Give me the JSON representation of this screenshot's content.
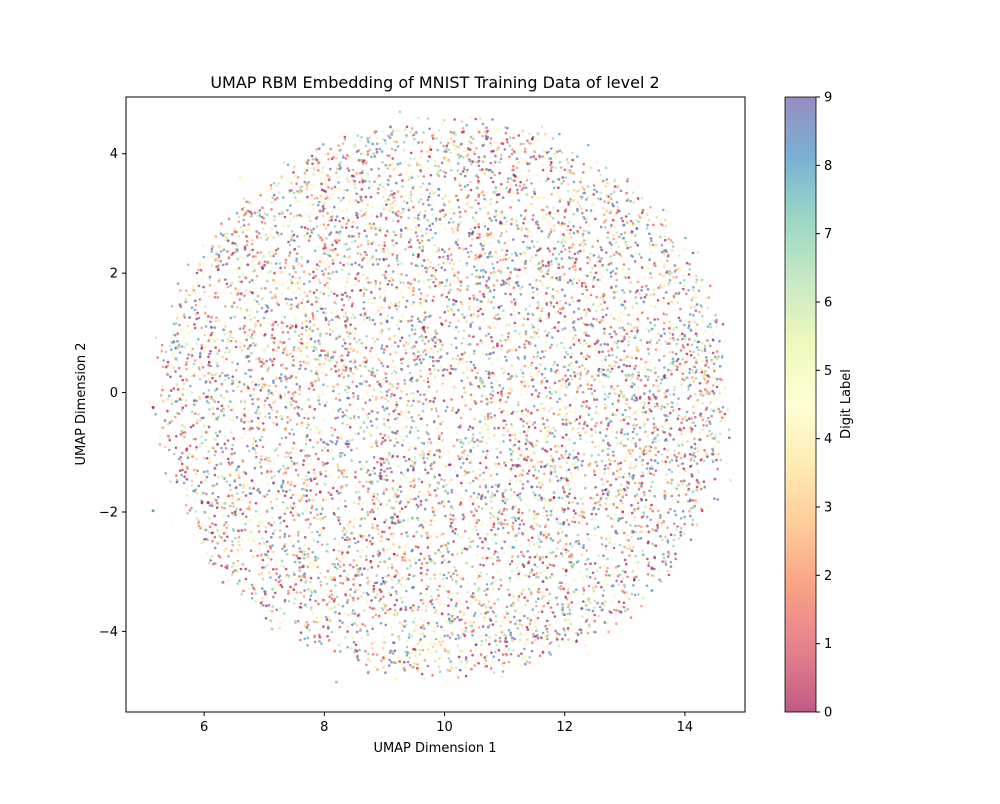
{
  "chart_data": {
    "type": "scatter",
    "title": "UMAP RBM Embedding of MNIST Training Data of level 2",
    "xlabel": "UMAP Dimension 1",
    "ylabel": "UMAP Dimension 2",
    "xlim": [
      4.7,
      15.0
    ],
    "ylim": [
      -5.35,
      4.95
    ],
    "xticks": [
      6,
      8,
      10,
      12,
      14
    ],
    "xtick_labels": [
      "6",
      "8",
      "10",
      "12",
      "14"
    ],
    "yticks": [
      -4,
      -2,
      0,
      2,
      4
    ],
    "ytick_labels": [
      "−4",
      "−2",
      "0",
      "2",
      "4"
    ],
    "grid": false,
    "legend": "none",
    "point_alpha": 0.65,
    "cloud": {
      "center": [
        10.0,
        -0.1
      ],
      "approx_extent_x": [
        5.2,
        14.5
      ],
      "approx_extent_y": [
        -4.85,
        4.45
      ],
      "description_of_distribution": "single dense roughly circular cloud, labels thoroughly intermixed"
    },
    "sample_points": [
      {
        "x": 5.15,
        "y": -0.25,
        "label": 0
      },
      {
        "x": 5.15,
        "y": -1.98,
        "label": 8
      },
      {
        "x": 8.2,
        "y": -4.85,
        "label": 7
      },
      {
        "x": 9.1,
        "y": 4.45,
        "label": 8
      },
      {
        "x": 9.8,
        "y": 4.3,
        "label": 2
      },
      {
        "x": 14.5,
        "y": -1.45,
        "label": 1
      },
      {
        "x": 14.4,
        "y": 0.0,
        "label": 3
      },
      {
        "x": 6.6,
        "y": 3.6,
        "label": 5
      },
      {
        "x": 10.7,
        "y": 4.25,
        "label": 9
      },
      {
        "x": 5.5,
        "y": 1.15,
        "label": 7
      }
    ],
    "colorbar": {
      "label": "Digit Label",
      "min": 0,
      "max": 9,
      "ticks": [
        0,
        1,
        2,
        3,
        4,
        5,
        6,
        7,
        8,
        9
      ],
      "tick_labels": [
        "0",
        "1",
        "2",
        "3",
        "4",
        "5",
        "6",
        "7",
        "8",
        "9"
      ],
      "colormap": "Spectral",
      "colors": [
        "#9e0142",
        "#d53e4f",
        "#f46d43",
        "#fdae61",
        "#fee08b",
        "#ffffbf",
        "#e6f598",
        "#abdda4",
        "#66c2a5",
        "#3288bd",
        "#5e4fa2"
      ]
    }
  }
}
